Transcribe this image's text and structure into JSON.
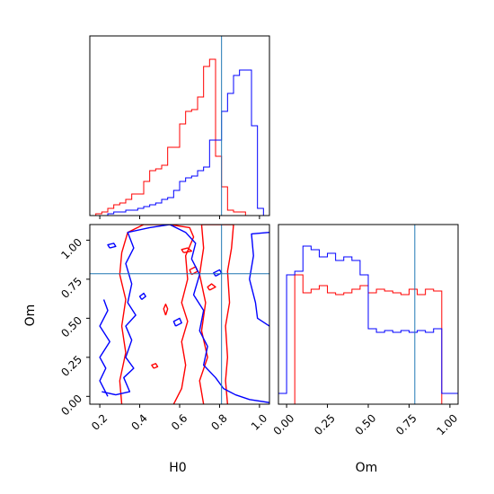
{
  "chart_data": {
    "type": "corner",
    "parameters": [
      "H0",
      "Om"
    ],
    "truth": {
      "H0": 0.81,
      "Om": 0.785
    },
    "series_colors": {
      "red": "#ff0000",
      "blue": "#0000ff",
      "truth": "#1f77b4"
    },
    "panels": [
      {
        "id": "hist-H0",
        "type": "step-histogram",
        "xlabel": "",
        "xlim": [
          0.15,
          1.05
        ],
        "xticks": [
          0.2,
          0.4,
          0.6,
          0.8,
          1.0
        ],
        "xtick_labels": [
          "",
          "",
          "",
          "",
          ""
        ],
        "ylim": [
          0,
          1.0
        ],
        "bin_edges": [
          0.18,
          0.21,
          0.24,
          0.27,
          0.3,
          0.33,
          0.36,
          0.39,
          0.42,
          0.45,
          0.48,
          0.51,
          0.54,
          0.57,
          0.6,
          0.63,
          0.66,
          0.69,
          0.72,
          0.75,
          0.78,
          0.81,
          0.84,
          0.87,
          0.9,
          0.93,
          0.96,
          0.99,
          1.02
        ],
        "series": [
          {
            "color": "red",
            "values": [
              0.01,
              0.02,
              0.04,
              0.06,
              0.07,
              0.09,
              0.12,
              0.12,
              0.19,
              0.25,
              0.26,
              0.28,
              0.38,
              0.38,
              0.51,
              0.58,
              0.59,
              0.66,
              0.83,
              0.87,
              0.33,
              0.16,
              0.03,
              0.02,
              0.02,
              0.0,
              0.0,
              0.0
            ]
          },
          {
            "color": "blue",
            "values": [
              0.0,
              0.0,
              0.01,
              0.02,
              0.02,
              0.03,
              0.03,
              0.04,
              0.05,
              0.06,
              0.07,
              0.09,
              0.1,
              0.14,
              0.19,
              0.21,
              0.22,
              0.25,
              0.27,
              0.42,
              0.42,
              0.58,
              0.68,
              0.78,
              0.81,
              0.81,
              0.5,
              0.04
            ]
          }
        ]
      },
      {
        "id": "contour-H0-Om",
        "type": "contour",
        "xlabel": "H0",
        "ylabel": "Om",
        "xlim": [
          0.15,
          1.05
        ],
        "ylim": [
          -0.05,
          1.1
        ],
        "xticks": [
          0.2,
          0.4,
          0.6,
          0.8,
          1.0
        ],
        "xtick_labels": [
          "0.2",
          "0.4",
          "0.6",
          "0.8",
          "1.0"
        ],
        "yticks": [
          0.0,
          0.25,
          0.5,
          0.75,
          1.0
        ],
        "ytick_labels": [
          "0.00",
          "0.25",
          "0.50",
          "0.75",
          "1.00"
        ],
        "series": [
          {
            "color": "red",
            "contours": [
              [
                [
                  0.31,
                  -0.05
                ],
                [
                  0.3,
                  0.1
                ],
                [
                  0.33,
                  0.28
                ],
                [
                  0.31,
                  0.45
                ],
                [
                  0.33,
                  0.62
                ],
                [
                  0.3,
                  0.78
                ],
                [
                  0.31,
                  0.92
                ],
                [
                  0.34,
                  1.05
                ],
                [
                  0.42,
                  1.1
                ],
                [
                  0.55,
                  1.1
                ],
                [
                  0.65,
                  1.08
                ],
                [
                  0.67,
                  1.02
                ],
                [
                  0.63,
                  0.9
                ],
                [
                  0.64,
                  0.75
                ],
                [
                  0.61,
                  0.6
                ],
                [
                  0.64,
                  0.48
                ],
                [
                  0.61,
                  0.35
                ],
                [
                  0.63,
                  0.2
                ],
                [
                  0.61,
                  0.05
                ],
                [
                  0.57,
                  -0.05
                ]
              ],
              [
                [
                  0.72,
                  -0.05
                ],
                [
                  0.7,
                  0.1
                ],
                [
                  0.74,
                  0.25
                ],
                [
                  0.71,
                  0.42
                ],
                [
                  0.73,
                  0.6
                ],
                [
                  0.7,
                  0.78
                ],
                [
                  0.72,
                  0.95
                ],
                [
                  0.71,
                  1.1
                ],
                [
                  0.87,
                  1.1
                ],
                [
                  0.86,
                  0.95
                ],
                [
                  0.84,
                  0.8
                ],
                [
                  0.85,
                  0.6
                ],
                [
                  0.83,
                  0.45
                ],
                [
                  0.84,
                  0.25
                ],
                [
                  0.83,
                  0.1
                ],
                [
                  0.84,
                  -0.05
                ]
              ],
              [
                [
                  0.47,
                  0.18
                ],
                [
                  0.49,
                  0.19
                ],
                [
                  0.48,
                  0.21
                ],
                [
                  0.46,
                  0.2
                ],
                [
                  0.47,
                  0.18
                ]
              ],
              [
                [
                  0.53,
                  0.52
                ],
                [
                  0.54,
                  0.56
                ],
                [
                  0.53,
                  0.59
                ],
                [
                  0.52,
                  0.56
                ],
                [
                  0.53,
                  0.52
                ]
              ],
              [
                [
                  0.66,
                  0.78
                ],
                [
                  0.69,
                  0.8
                ],
                [
                  0.68,
                  0.83
                ],
                [
                  0.65,
                  0.81
                ],
                [
                  0.66,
                  0.78
                ]
              ],
              [
                [
                  0.75,
                  0.68
                ],
                [
                  0.78,
                  0.7
                ],
                [
                  0.76,
                  0.72
                ],
                [
                  0.74,
                  0.7
                ],
                [
                  0.75,
                  0.68
                ]
              ],
              [
                [
                  0.62,
                  0.92
                ],
                [
                  0.66,
                  0.93
                ],
                [
                  0.64,
                  0.95
                ],
                [
                  0.61,
                  0.94
                ],
                [
                  0.62,
                  0.92
                ]
              ]
            ]
          },
          {
            "color": "blue",
            "contours": [
              [
                [
                  0.21,
                  0.03
                ],
                [
                  0.28,
                  0.01
                ],
                [
                  0.35,
                  0.03
                ],
                [
                  0.32,
                  0.12
                ],
                [
                  0.37,
                  0.18
                ],
                [
                  0.33,
                  0.25
                ],
                [
                  0.36,
                  0.36
                ],
                [
                  0.33,
                  0.45
                ],
                [
                  0.38,
                  0.52
                ],
                [
                  0.34,
                  0.6
                ],
                [
                  0.36,
                  0.72
                ],
                [
                  0.33,
                  0.85
                ],
                [
                  0.37,
                  0.95
                ],
                [
                  0.34,
                  1.05
                ],
                [
                  0.45,
                  1.08
                ],
                [
                  0.55,
                  1.1
                ],
                [
                  0.63,
                  1.05
                ],
                [
                  0.68,
                  0.98
                ],
                [
                  0.66,
                  0.88
                ],
                [
                  0.7,
                  0.78
                ],
                [
                  0.67,
                  0.65
                ],
                [
                  0.72,
                  0.55
                ],
                [
                  0.7,
                  0.42
                ],
                [
                  0.74,
                  0.32
                ],
                [
                  0.72,
                  0.2
                ],
                [
                  0.78,
                  0.12
                ],
                [
                  0.82,
                  0.05
                ],
                [
                  0.88,
                  0.01
                ],
                [
                  0.95,
                  -0.02
                ],
                [
                  1.05,
                  -0.04
                ]
              ],
              [
                [
                  0.24,
                  0.0
                ],
                [
                  0.2,
                  0.1
                ],
                [
                  0.23,
                  0.18
                ],
                [
                  0.2,
                  0.25
                ],
                [
                  0.25,
                  0.35
                ],
                [
                  0.2,
                  0.45
                ],
                [
                  0.24,
                  0.55
                ],
                [
                  0.22,
                  0.62
                ]
              ],
              [
                [
                  1.05,
                  0.45
                ],
                [
                  0.99,
                  0.5
                ],
                [
                  0.98,
                  0.6
                ],
                [
                  0.95,
                  0.75
                ],
                [
                  0.97,
                  0.9
                ],
                [
                  0.96,
                  1.04
                ],
                [
                  1.05,
                  1.05
                ]
              ],
              [
                [
                  0.25,
                  0.95
                ],
                [
                  0.28,
                  0.96
                ],
                [
                  0.27,
                  0.98
                ],
                [
                  0.24,
                  0.97
                ],
                [
                  0.25,
                  0.95
                ]
              ],
              [
                [
                  0.41,
                  0.62
                ],
                [
                  0.43,
                  0.64
                ],
                [
                  0.42,
                  0.66
                ],
                [
                  0.4,
                  0.64
                ],
                [
                  0.41,
                  0.62
                ]
              ],
              [
                [
                  0.58,
                  0.45
                ],
                [
                  0.61,
                  0.47
                ],
                [
                  0.6,
                  0.5
                ],
                [
                  0.57,
                  0.48
                ],
                [
                  0.58,
                  0.45
                ]
              ],
              [
                [
                  0.78,
                  0.77
                ],
                [
                  0.81,
                  0.79
                ],
                [
                  0.8,
                  0.81
                ],
                [
                  0.77,
                  0.79
                ],
                [
                  0.78,
                  0.77
                ]
              ]
            ]
          }
        ]
      },
      {
        "id": "hist-Om",
        "type": "step-histogram",
        "xlabel": "Om",
        "xlim": [
          -0.05,
          1.05
        ],
        "xticks": [
          0.0,
          0.25,
          0.5,
          0.75,
          1.0
        ],
        "xtick_labels": [
          "0.00",
          "0.25",
          "0.50",
          "0.75",
          "1.00"
        ],
        "ylim": [
          0,
          1.0
        ],
        "bin_edges": [
          -0.05,
          0.0,
          0.05,
          0.1,
          0.15,
          0.2,
          0.25,
          0.3,
          0.35,
          0.4,
          0.45,
          0.5,
          0.55,
          0.6,
          0.65,
          0.7,
          0.75,
          0.8,
          0.85,
          0.9,
          0.95,
          1.0,
          1.05
        ],
        "series": [
          {
            "color": "red",
            "values": [
              0.0,
              0.0,
              0.72,
              0.62,
              0.64,
              0.66,
              0.62,
              0.61,
              0.62,
              0.64,
              0.66,
              0.62,
              0.64,
              0.63,
              0.62,
              0.61,
              0.64,
              0.61,
              0.64,
              0.63,
              0.0,
              0.0
            ]
          },
          {
            "color": "blue",
            "values": [
              0.06,
              0.72,
              0.74,
              0.88,
              0.86,
              0.82,
              0.84,
              0.8,
              0.82,
              0.8,
              0.72,
              0.42,
              0.4,
              0.41,
              0.4,
              0.41,
              0.4,
              0.41,
              0.4,
              0.42,
              0.06,
              0.06
            ]
          }
        ]
      }
    ]
  }
}
